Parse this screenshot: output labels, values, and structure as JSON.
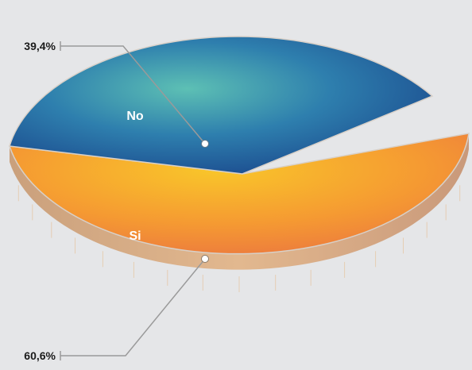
{
  "chart_data": {
    "type": "pie",
    "categories": [
      "No",
      "Si"
    ],
    "values": [
      39.4,
      60.6
    ],
    "value_labels": [
      "39,4%",
      "60,6%"
    ],
    "colors": {
      "No": "#1f5a9a",
      "Si": "#f18f35",
      "side": "#d8ab82",
      "background": "#e5e6e8"
    }
  }
}
